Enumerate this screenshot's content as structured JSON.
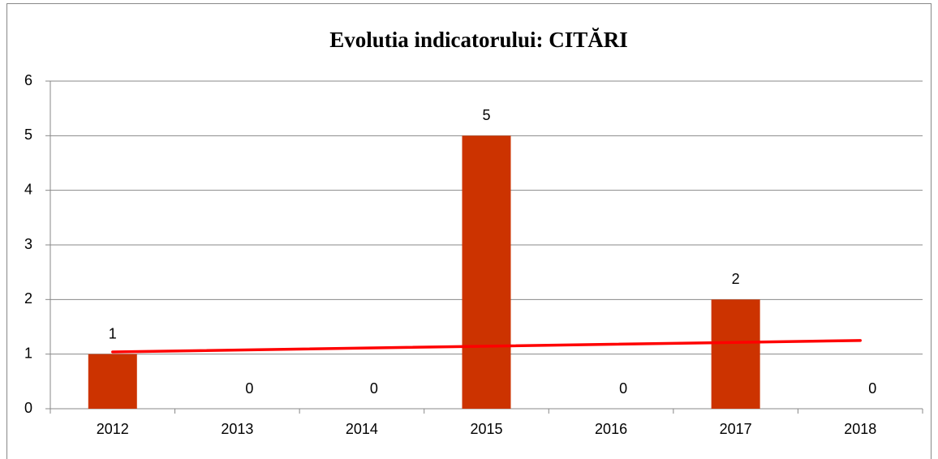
{
  "chart_data": {
    "type": "bar",
    "title": "Evolutia indicatorului: CITĂRI",
    "categories": [
      "2012",
      "2013",
      "2014",
      "2015",
      "2016",
      "2017",
      "2018"
    ],
    "values": [
      1,
      0,
      0,
      5,
      0,
      2,
      0
    ],
    "color": "#cc3300",
    "ylim": [
      0,
      6
    ],
    "yticks": [
      0,
      1,
      2,
      3,
      4,
      5,
      6
    ],
    "grid": true,
    "trendline": {
      "color": "#ff0000",
      "values": [
        1.04,
        1.25
      ]
    }
  }
}
